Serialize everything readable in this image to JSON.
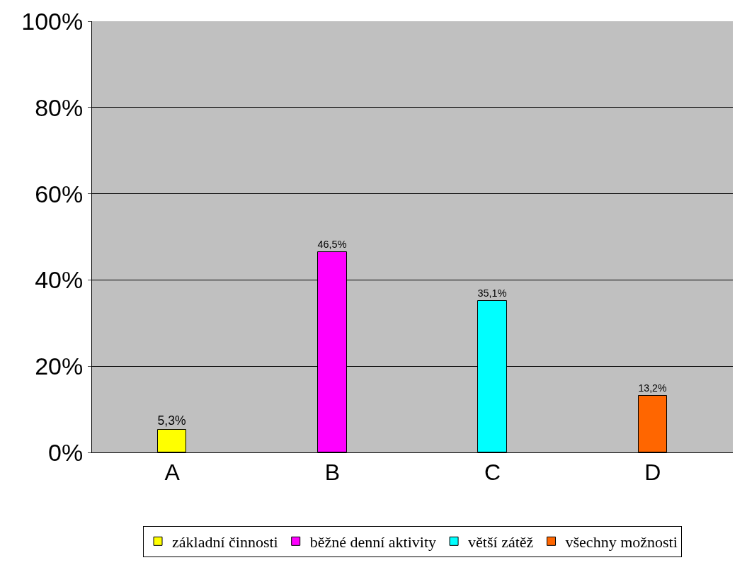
{
  "chart_data": {
    "type": "bar",
    "categories": [
      "A",
      "B",
      "C",
      "D"
    ],
    "series": [
      {
        "name": "základní činnosti",
        "color": "#ffff00",
        "values": [
          5.3,
          null,
          null,
          null
        ],
        "value_labels": [
          "5,3%",
          null,
          null,
          null
        ]
      },
      {
        "name": "běžné denní aktivity",
        "color": "#ff00ff",
        "values": [
          null,
          46.5,
          null,
          null
        ],
        "value_labels": [
          null,
          "46,5%",
          null,
          null
        ]
      },
      {
        "name": "větší zátěž",
        "color": "#00ffff",
        "values": [
          null,
          null,
          35.1,
          null
        ],
        "value_labels": [
          null,
          null,
          "35,1%",
          null
        ]
      },
      {
        "name": "všechny možnosti",
        "color": "#ff6600",
        "values": [
          null,
          null,
          null,
          13.2
        ],
        "value_labels": [
          null,
          null,
          null,
          "13,2%"
        ]
      }
    ],
    "ylim": [
      0,
      100
    ],
    "yticks": [
      {
        "value": 0,
        "label": "0%"
      },
      {
        "value": 20,
        "label": "20%"
      },
      {
        "value": 40,
        "label": "40%"
      },
      {
        "value": 60,
        "label": "60%"
      },
      {
        "value": 80,
        "label": "80%"
      },
      {
        "value": 100,
        "label": "100%"
      }
    ],
    "grid": "y",
    "legend": "bottom"
  }
}
